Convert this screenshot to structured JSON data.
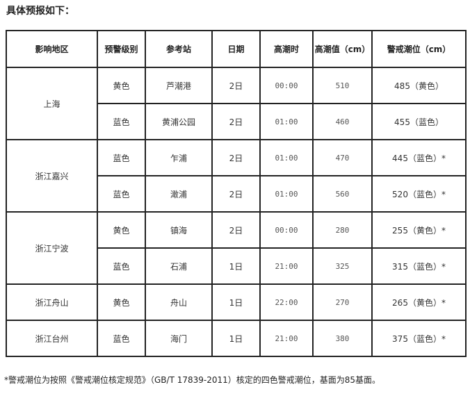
{
  "title": "具体预报如下：",
  "table": {
    "headers": [
      "影响地区",
      "预警级别",
      "参考站",
      "日期",
      "高潮时",
      "高潮值（cm）",
      "警戒潮位（cm）"
    ],
    "groups": [
      {
        "region": "上海",
        "rows": [
          {
            "level": "黄色",
            "station": "芦潮港",
            "date": "2日",
            "time": "00:00",
            "value": "510",
            "alert": "485（黄色）"
          },
          {
            "level": "蓝色",
            "station": "黄浦公园",
            "date": "2日",
            "time": "01:00",
            "value": "460",
            "alert": "455（蓝色）"
          }
        ]
      },
      {
        "region": "浙江嘉兴",
        "rows": [
          {
            "level": "蓝色",
            "station": "乍浦",
            "date": "2日",
            "time": "01:00",
            "value": "470",
            "alert": "445（蓝色）*"
          },
          {
            "level": "蓝色",
            "station": "澉浦",
            "date": "2日",
            "time": "01:00",
            "value": "560",
            "alert": "520（蓝色）*"
          }
        ]
      },
      {
        "region": "浙江宁波",
        "rows": [
          {
            "level": "黄色",
            "station": "镇海",
            "date": "2日",
            "time": "00:00",
            "value": "280",
            "alert": "255（黄色）*"
          },
          {
            "level": "蓝色",
            "station": "石浦",
            "date": "1日",
            "time": "21:00",
            "value": "325",
            "alert": "315（蓝色）*"
          }
        ]
      },
      {
        "region": "浙江舟山",
        "rows": [
          {
            "level": "黄色",
            "station": "舟山",
            "date": "1日",
            "time": "22:00",
            "value": "270",
            "alert": "265（黄色）*"
          }
        ]
      },
      {
        "region": "浙江台州",
        "rows": [
          {
            "level": "蓝色",
            "station": "海门",
            "date": "1日",
            "time": "21:00",
            "value": "380",
            "alert": "375（蓝色）*"
          }
        ]
      }
    ]
  },
  "note": "*警戒潮位为按照《警戒潮位核定规范》（GB/T 17839-2011）核定的四色警戒潮位，基面为85基面。"
}
